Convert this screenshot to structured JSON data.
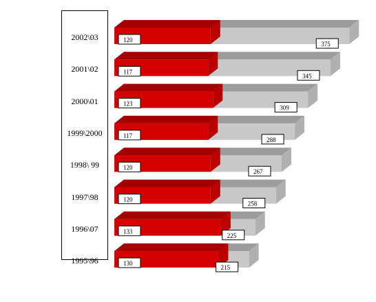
{
  "chart_data": {
    "type": "bar",
    "orientation": "horizontal",
    "style": "3d-stacked-overlay",
    "categories": [
      "2002\\03",
      "2001\\02",
      "2000\\01",
      "1999\\2000",
      "1998\\ 99",
      "1997\\98",
      "1996\\07",
      "1995\\96"
    ],
    "series": [
      {
        "values": [
          120,
          117,
          123,
          117,
          120,
          120,
          133,
          130
        ],
        "color": "#d40000"
      },
      {
        "values": [
          375,
          345,
          309,
          288,
          267,
          258,
          225,
          215
        ],
        "color": "#c8c8c8"
      }
    ],
    "title": "",
    "xlabel": "",
    "ylabel": "",
    "grid": false,
    "legend": "none"
  }
}
